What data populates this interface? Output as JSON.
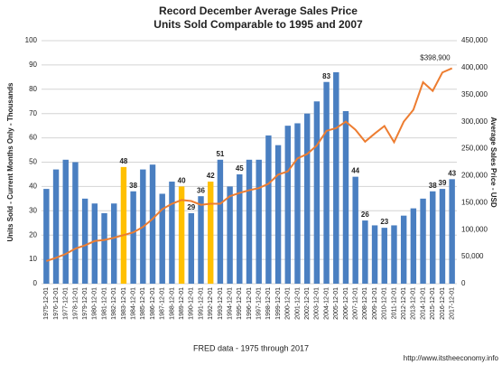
{
  "chart_data": {
    "type": "combo",
    "title": "Record December Average Sales Price",
    "subtitle": "Units Sold Comparable to 1995 and 2007",
    "x_label": "FRED data - 1975 through 2017",
    "y_label": "Units Sold - Current Months Only - Thousands",
    "y2_label": "Average Sales Price - USD",
    "source": "http://www.itstheeconomy.info",
    "categories": [
      "1975-12-01",
      "1976-12-01",
      "1977-12-01",
      "1978-12-01",
      "1979-12-01",
      "1980-12-01",
      "1981-12-01",
      "1982-12-01",
      "1983-12-01",
      "1984-12-01",
      "1985-12-01",
      "1986-12-01",
      "1987-12-01",
      "1988-12-01",
      "1989-12-01",
      "1990-12-01",
      "1991-12-01",
      "1992-12-01",
      "1993-12-01",
      "1994-12-01",
      "1995-12-01",
      "1996-12-01",
      "1997-12-01",
      "1998-12-01",
      "1999-12-01",
      "2000-12-01",
      "2001-12-01",
      "2002-12-01",
      "2003-12-01",
      "2004-12-01",
      "2005-12-01",
      "2006-12-01",
      "2007-12-01",
      "2008-12-01",
      "2009-12-01",
      "2010-12-01",
      "2011-12-01",
      "2012-12-01",
      "2013-12-01",
      "2014-12-01",
      "2015-12-01",
      "2016-12-01",
      "2017-12-01"
    ],
    "ylim": [
      0,
      100
    ],
    "yticks": [
      0,
      10,
      20,
      30,
      40,
      50,
      60,
      70,
      80,
      90,
      100
    ],
    "y2lim": [
      0,
      450000
    ],
    "y2ticks": [
      0,
      {
        "value": 50000,
        "label": "50,000"
      },
      {
        "value": 100000,
        "label": "100,000"
      },
      {
        "value": 150000,
        "label": "150,000"
      },
      {
        "value": 200000,
        "label": "200,000"
      },
      {
        "value": 250000,
        "label": "250,000"
      },
      {
        "value": 300000,
        "label": "300,000"
      },
      {
        "value": 350000,
        "label": "350,000"
      },
      {
        "value": 400000,
        "label": "400,000"
      },
      {
        "value": 450000,
        "label": "450,000"
      }
    ],
    "grid": true,
    "y_label_color": "#2f5597",
    "y2_label_color": "#e8302a",
    "series": [
      {
        "type": "bar",
        "color": "#4a7fc1",
        "colors": [
          "#4a7fc1",
          "#4a7fc1",
          "#4a7fc1",
          "#4a7fc1",
          "#4a7fc1",
          "#4a7fc1",
          "#4a7fc1",
          "#4a7fc1",
          "#ffc000",
          "#4a7fc1",
          "#4a7fc1",
          "#4a7fc1",
          "#4a7fc1",
          "#4a7fc1",
          "#ffc000",
          "#4a7fc1",
          "#4a7fc1",
          "#ffc000",
          "#4a7fc1",
          "#4a7fc1",
          "#4a7fc1",
          "#4a7fc1",
          "#4a7fc1",
          "#4a7fc1",
          "#4a7fc1",
          "#4a7fc1",
          "#4a7fc1",
          "#4a7fc1",
          "#4a7fc1",
          "#4a7fc1",
          "#4a7fc1",
          "#4a7fc1",
          "#4a7fc1",
          "#4a7fc1",
          "#4a7fc1",
          "#4a7fc1",
          "#4a7fc1",
          "#4a7fc1",
          "#4a7fc1",
          "#4a7fc1",
          "#4a7fc1",
          "#4a7fc1",
          "#4a7fc1"
        ],
        "values": [
          39,
          47,
          51,
          50,
          35,
          33,
          29,
          33,
          48,
          38,
          47,
          49,
          37,
          42,
          40,
          29,
          36,
          42,
          51,
          40,
          45,
          51,
          51,
          61,
          57,
          65,
          66,
          70,
          75,
          83,
          87,
          71,
          44,
          26,
          24,
          23,
          24,
          28,
          31,
          35,
          38,
          39,
          43
        ],
        "value_labels": [
          null,
          null,
          null,
          null,
          null,
          null,
          null,
          null,
          "48",
          "38",
          null,
          null,
          null,
          null,
          "40",
          "29",
          "36",
          "42",
          "51",
          null,
          "45",
          null,
          null,
          null,
          null,
          null,
          null,
          null,
          null,
          "83",
          null,
          null,
          "44",
          "26",
          null,
          "23",
          null,
          null,
          null,
          null,
          "38",
          "39",
          "43"
        ]
      },
      {
        "type": "line",
        "axis": "y2",
        "color": "#ed7d31",
        "values": [
          42000,
          48000,
          55000,
          65000,
          71000,
          79000,
          81000,
          85000,
          90000,
          95000,
          105000,
          120000,
          138000,
          148000,
          155000,
          153000,
          146000,
          148000,
          148000,
          162000,
          168000,
          173000,
          177000,
          185000,
          202000,
          208000,
          232000,
          240000,
          256000,
          283000,
          288000,
          300000,
          285000,
          263000,
          278000,
          292000,
          262000,
          300000,
          322000,
          373000,
          357000,
          391000,
          398900
        ],
        "value_labels": [
          null,
          null,
          null,
          null,
          null,
          null,
          null,
          null,
          null,
          null,
          null,
          null,
          null,
          null,
          null,
          null,
          null,
          null,
          null,
          null,
          null,
          null,
          null,
          null,
          null,
          null,
          null,
          null,
          null,
          null,
          null,
          null,
          null,
          null,
          null,
          null,
          null,
          null,
          null,
          null,
          null,
          null,
          "$398,900"
        ]
      }
    ]
  }
}
